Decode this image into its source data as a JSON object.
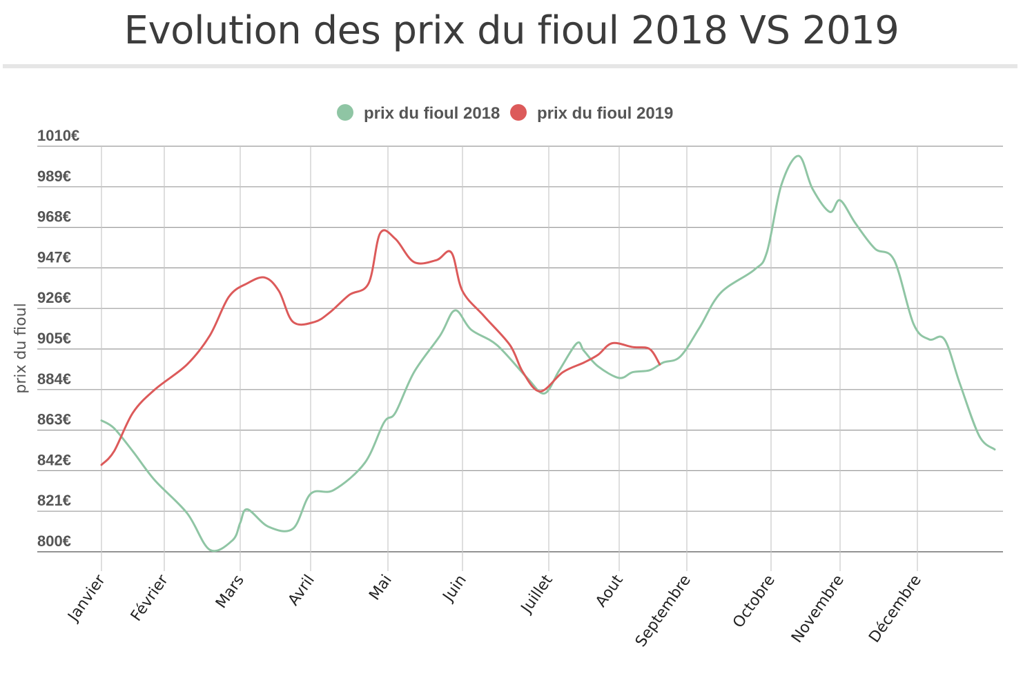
{
  "chart_data": {
    "type": "line",
    "title": "Evolution des prix du fioul 2018 VS 2019",
    "ylabel": "prix du fioul",
    "xlabel": "",
    "ylim": [
      800,
      1010
    ],
    "yticks": [
      "800€",
      "821€",
      "842€",
      "863€",
      "884€",
      "905€",
      "926€",
      "947€",
      "968€",
      "989€",
      "1010€"
    ],
    "categories": [
      "Janvier",
      "Février",
      "Mars",
      "Avril",
      "Mai",
      "Juin",
      "Juillet",
      "Aout",
      "Septembre",
      "Octobre",
      "Novembre",
      "Décembre"
    ],
    "legend_position": "top-center",
    "grid": true,
    "series": [
      {
        "name": "prix du fioul 2018",
        "color": "#8fc5a4",
        "points": [
          [
            0,
            868
          ],
          [
            0.2,
            864
          ],
          [
            0.5,
            852
          ],
          [
            0.85,
            837
          ],
          [
            1.3,
            820
          ],
          [
            1.6,
            801
          ],
          [
            1.9,
            806
          ],
          [
            2.0,
            815
          ],
          [
            2.1,
            822
          ],
          [
            2.4,
            813
          ],
          [
            2.75,
            812
          ],
          [
            3.0,
            830
          ],
          [
            3.3,
            832
          ],
          [
            3.7,
            846
          ],
          [
            3.95,
            867
          ],
          [
            4.1,
            872
          ],
          [
            4.35,
            893
          ],
          [
            4.7,
            912
          ],
          [
            4.9,
            925
          ],
          [
            5.1,
            915
          ],
          [
            5.4,
            907
          ],
          [
            5.75,
            890
          ],
          [
            5.95,
            882
          ],
          [
            6.15,
            894
          ],
          [
            6.4,
            908
          ],
          [
            6.5,
            904
          ],
          [
            6.7,
            896
          ],
          [
            7.0,
            890
          ],
          [
            7.2,
            893
          ],
          [
            7.45,
            894
          ],
          [
            7.65,
            898
          ],
          [
            7.9,
            901
          ],
          [
            8.15,
            916
          ],
          [
            8.4,
            934
          ],
          [
            8.8,
            946
          ],
          [
            8.95,
            955
          ],
          [
            9.15,
            990
          ],
          [
            9.4,
            1005
          ],
          [
            9.6,
            988
          ],
          [
            9.85,
            976
          ],
          [
            10.0,
            982
          ],
          [
            10.2,
            970
          ],
          [
            10.45,
            957
          ],
          [
            10.7,
            951
          ],
          [
            10.95,
            918
          ],
          [
            11.15,
            910
          ],
          [
            11.35,
            910
          ],
          [
            11.55,
            887
          ],
          [
            11.8,
            860
          ],
          [
            12.0,
            853
          ]
        ]
      },
      {
        "name": "prix du fioul 2019",
        "color": "#dc5a5a",
        "points": [
          [
            0,
            845
          ],
          [
            0.2,
            852
          ],
          [
            0.5,
            872
          ],
          [
            0.85,
            884
          ],
          [
            1.3,
            897
          ],
          [
            1.6,
            912
          ],
          [
            1.85,
            932
          ],
          [
            2.1,
            939
          ],
          [
            2.35,
            942
          ],
          [
            2.55,
            935
          ],
          [
            2.75,
            919
          ],
          [
            3.05,
            919
          ],
          [
            3.25,
            924
          ],
          [
            3.5,
            933
          ],
          [
            3.75,
            939
          ],
          [
            3.9,
            965
          ],
          [
            4.1,
            962
          ],
          [
            4.35,
            950
          ],
          [
            4.65,
            951
          ],
          [
            4.85,
            955
          ],
          [
            5.0,
            935
          ],
          [
            5.25,
            922
          ],
          [
            5.55,
            907
          ],
          [
            5.7,
            893
          ],
          [
            5.9,
            883
          ],
          [
            6.2,
            893
          ],
          [
            6.5,
            898
          ],
          [
            6.7,
            902
          ],
          [
            6.9,
            908
          ],
          [
            7.2,
            906
          ],
          [
            7.45,
            905
          ],
          [
            7.6,
            897
          ]
        ]
      }
    ]
  }
}
